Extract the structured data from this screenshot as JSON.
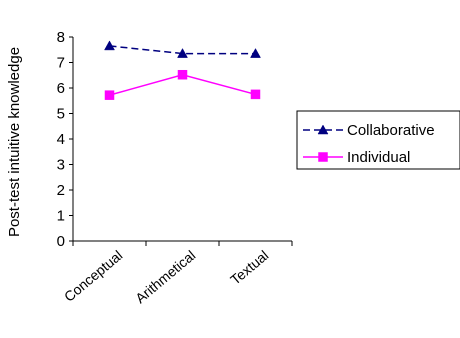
{
  "chart_data": {
    "type": "line",
    "title": "",
    "xlabel": "",
    "ylabel": "Post-test intuitive knowledge",
    "categories": [
      "Conceptual",
      "Arithmetical",
      "Textual"
    ],
    "ylim": [
      0,
      8
    ],
    "yticks": [
      "0",
      "1",
      "2",
      "3",
      "4",
      "5",
      "6",
      "7",
      "8"
    ],
    "grid": false,
    "legend_position": "right",
    "series": [
      {
        "name": "Collaborative",
        "values": [
          7.65,
          7.35,
          7.35
        ],
        "color": "#000080",
        "line_style": "dashed",
        "marker": "triangle"
      },
      {
        "name": "Individual",
        "values": [
          5.72,
          6.52,
          5.75
        ],
        "color": "#FF00FF",
        "line_style": "solid",
        "marker": "square"
      }
    ]
  }
}
